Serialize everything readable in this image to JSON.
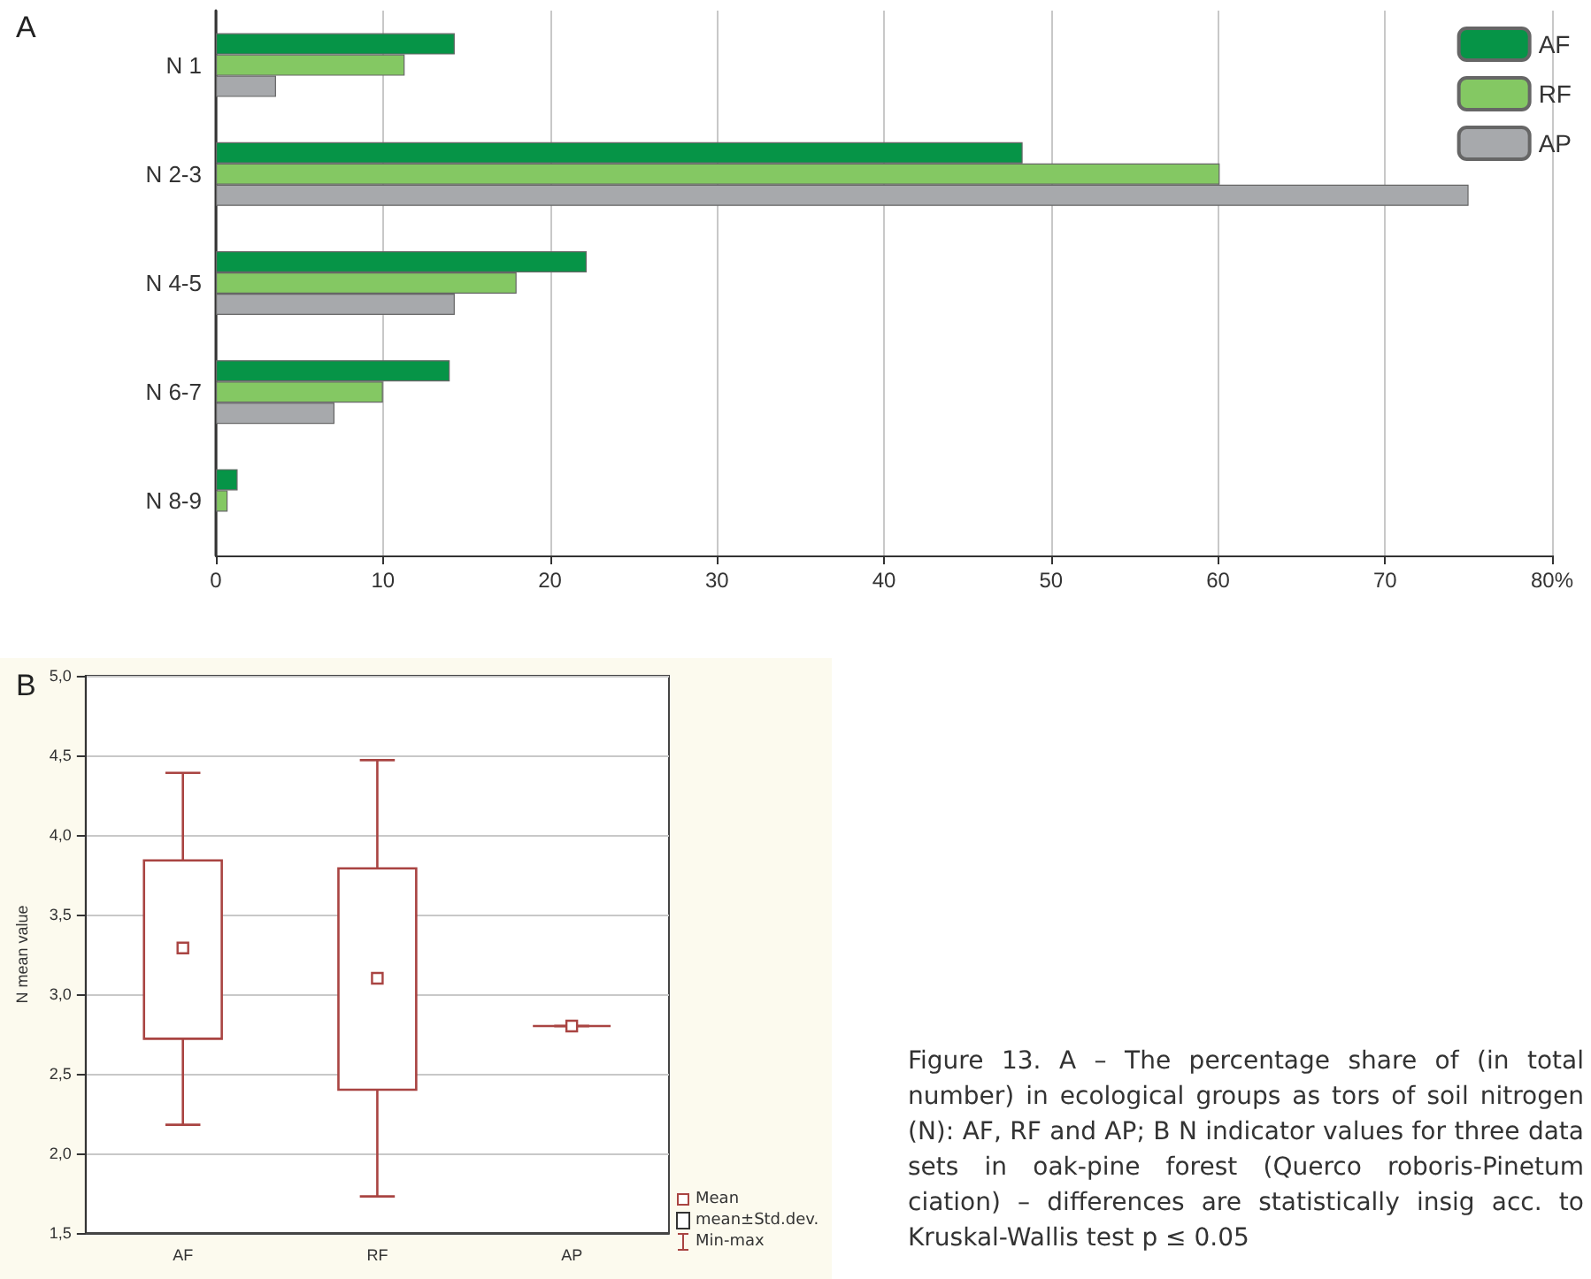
{
  "chart_data": [
    {
      "type": "bar",
      "title": "A",
      "orientation": "horizontal",
      "categories": [
        "N 1",
        "N 2-3",
        "N 4-5",
        "N 6-7",
        "N 8-9"
      ],
      "series": [
        {
          "name": "AF",
          "color": "#069447",
          "values": [
            14.3,
            48.3,
            22.2,
            14.0,
            1.3
          ]
        },
        {
          "name": "RF",
          "color": "#84c863",
          "values": [
            11.3,
            60.1,
            18.0,
            10.0,
            0.7
          ]
        },
        {
          "name": "AP",
          "color": "#a7a9ac",
          "values": [
            3.6,
            75.0,
            14.3,
            7.1,
            null
          ]
        }
      ],
      "xlim": [
        0,
        80
      ],
      "xticks": [
        0,
        10,
        20,
        30,
        40,
        50,
        60,
        70,
        {
          "value": 80,
          "label": "80%"
        }
      ],
      "grid": "x",
      "legend": "top right"
    },
    {
      "type": "box",
      "title": "B",
      "ylabel": "N mean value",
      "categories": [
        "AF",
        "RF",
        "AP"
      ],
      "ylim": [
        1.5,
        5.0
      ],
      "yticks": [
        {
          "value": 1.5,
          "label": "1,5"
        },
        {
          "value": 2.0,
          "label": "2,0"
        },
        {
          "value": 2.5,
          "label": "2,5"
        },
        {
          "value": 3.0,
          "label": "3,0"
        },
        {
          "value": 3.5,
          "label": "3,5"
        },
        {
          "value": 4.0,
          "label": "4,0"
        },
        {
          "value": 4.5,
          "label": "4,5"
        },
        {
          "value": 5.0,
          "label": "5,0"
        }
      ],
      "grid": "y",
      "color": "#a94442",
      "boxes": [
        {
          "low": 2.18,
          "q1": 2.72,
          "q3": 3.84,
          "high": 4.39,
          "mean": 3.29
        },
        {
          "low": 1.73,
          "q1": 2.4,
          "q3": 3.79,
          "high": 4.47,
          "mean": 3.1
        },
        {
          "low": 2.8,
          "q1": 2.8,
          "q3": 2.8,
          "high": 2.8,
          "mean": 2.8
        }
      ],
      "annotations": [
        "Mean",
        "mean±Std.dev.",
        "Min-max",
        "Figure 13. A – The percentage share of (in total number) in ecological groups as tors of soil nitrogen (N): AF, RF and AP; B N indicator values for three data sets in oak-pine forest (Querco roboris-Pinetum ciation) – differences are statistically insig acc. to Kruskal-Wallis test p ≤ 0.05"
      ]
    }
  ]
}
